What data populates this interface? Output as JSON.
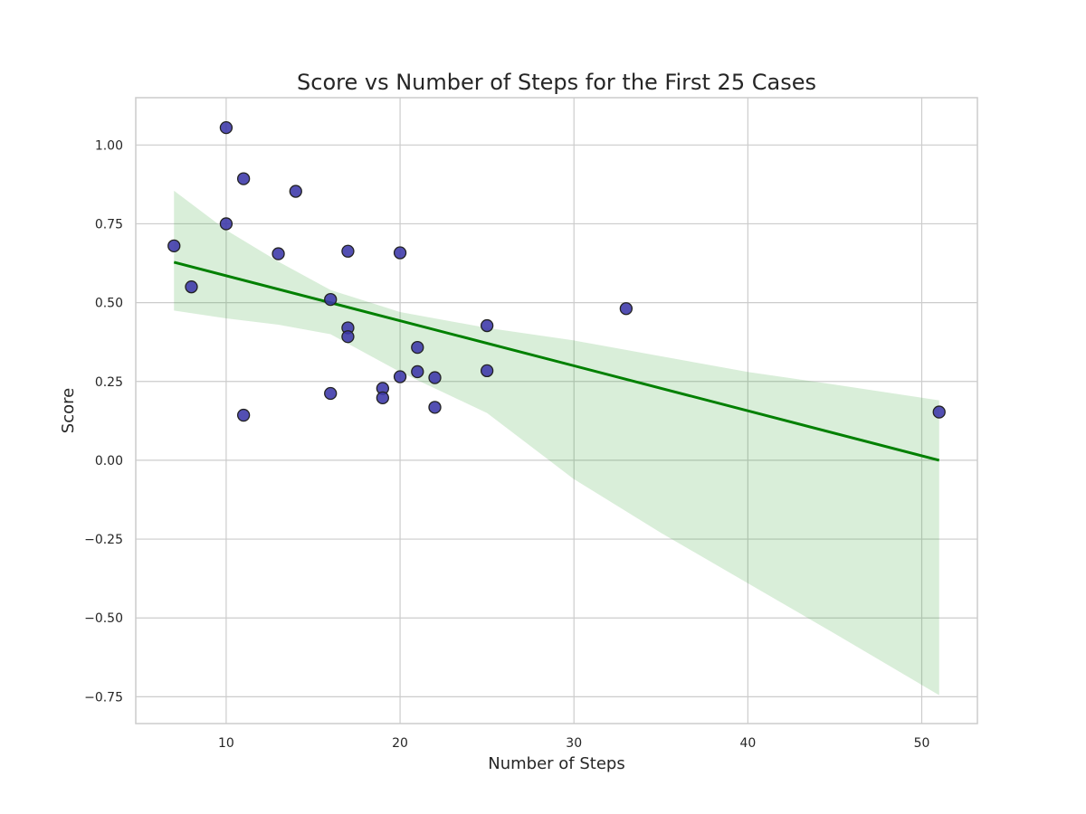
{
  "chart_data": {
    "type": "scatter",
    "title": "Score vs Number of Steps for the First 25 Cases",
    "xlabel": "Number of Steps",
    "ylabel": "Score",
    "xlim": [
      4.8,
      53.2
    ],
    "ylim": [
      -0.835,
      1.15
    ],
    "xticks": [
      10,
      20,
      30,
      40,
      50
    ],
    "yticks": [
      -0.75,
      -0.5,
      -0.25,
      0.0,
      0.25,
      0.5,
      0.75,
      1.0
    ],
    "xtick_labels": [
      "10",
      "20",
      "30",
      "40",
      "50"
    ],
    "ytick_labels": [
      "−0.75",
      "−0.50",
      "−0.25",
      "0.00",
      "0.25",
      "0.50",
      "0.75",
      "1.00"
    ],
    "grid": true,
    "points": {
      "x": [
        10,
        11,
        14,
        10,
        7,
        13,
        17,
        20,
        8,
        16,
        17,
        17,
        25,
        33,
        21,
        21,
        20,
        22,
        25,
        19,
        19,
        16,
        22,
        11,
        51
      ],
      "y": [
        1.055,
        0.893,
        0.853,
        0.75,
        0.68,
        0.655,
        0.663,
        0.658,
        0.55,
        0.51,
        0.42,
        0.392,
        0.427,
        0.481,
        0.358,
        0.281,
        0.265,
        0.262,
        0.284,
        0.228,
        0.198,
        0.212,
        0.168,
        0.143,
        0.153
      ],
      "color": "#3b37a8",
      "edge_color": "#222222"
    },
    "regression": {
      "x": [
        7,
        51
      ],
      "y": [
        0.628,
        0.0
      ],
      "color": "#008000"
    },
    "confidence_band": {
      "x": [
        7,
        10,
        13,
        16,
        20,
        25,
        30,
        35,
        40,
        45,
        51
      ],
      "upper": [
        0.855,
        0.73,
        0.63,
        0.54,
        0.47,
        0.42,
        0.38,
        0.33,
        0.28,
        0.24,
        0.19
      ],
      "lower": [
        0.475,
        0.45,
        0.43,
        0.4,
        0.28,
        0.15,
        -0.06,
        -0.23,
        -0.39,
        -0.55,
        -0.745
      ],
      "color": "#2ca02c"
    }
  }
}
